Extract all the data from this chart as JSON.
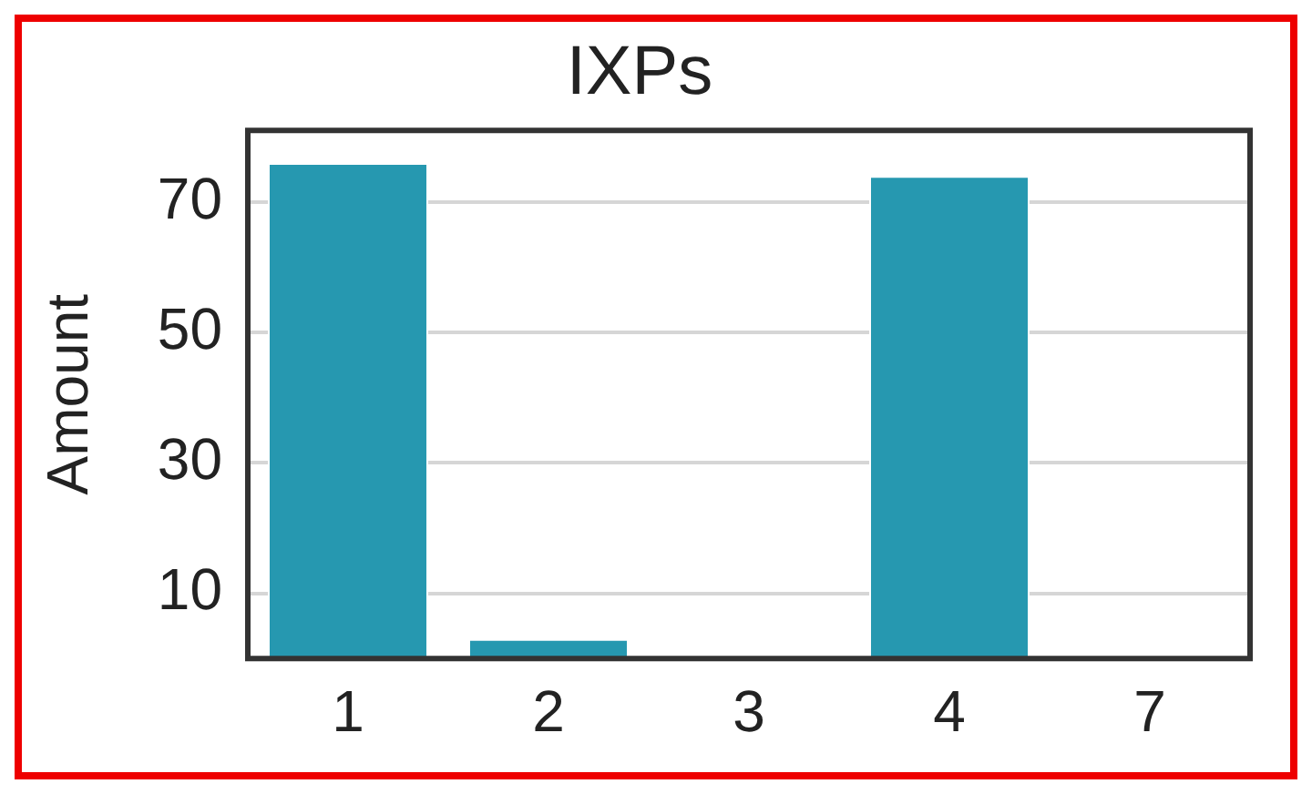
{
  "chart_data": {
    "type": "bar",
    "title": "IXPs",
    "ylabel": "Amount",
    "categories": [
      "1",
      "2",
      "3",
      "4",
      "7"
    ],
    "values": [
      76,
      3,
      0,
      74,
      0
    ],
    "color": "#2698b0",
    "ylim": [
      0,
      81
    ],
    "yticks": [
      10,
      30,
      50,
      70
    ],
    "grid": "y"
  }
}
